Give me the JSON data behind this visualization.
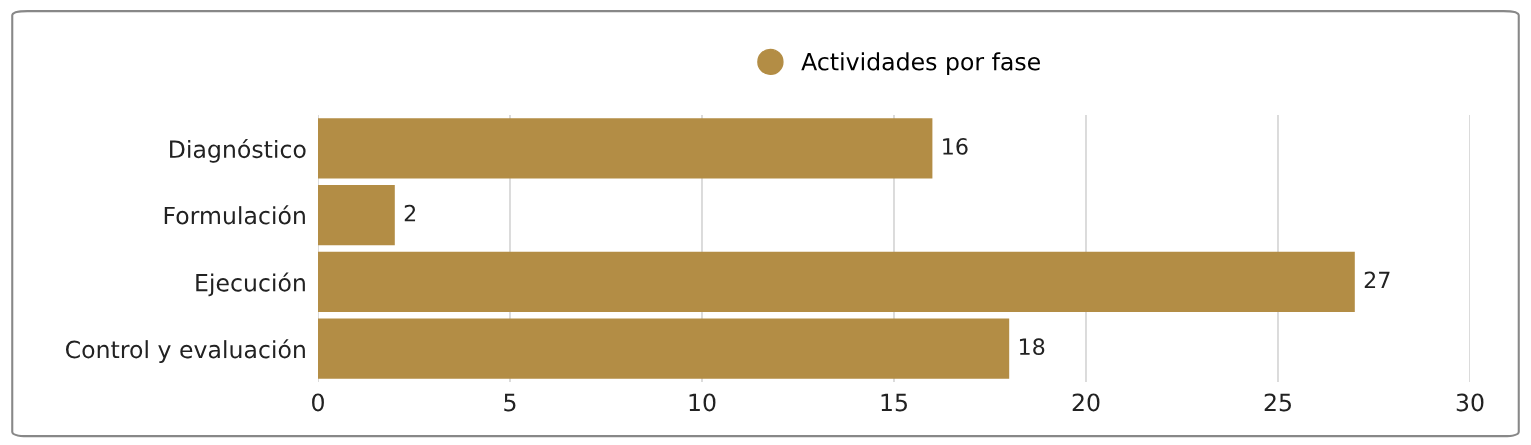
{
  "chart_data": {
    "type": "bar",
    "orientation": "horizontal",
    "categories": [
      "Diagnóstico",
      "Formulación",
      "Ejecución",
      "Control y evaluación"
    ],
    "series": [
      {
        "name": "Actividades por fase",
        "color": "#b38d45",
        "values": [
          16,
          2,
          27,
          18
        ]
      }
    ],
    "xlim": [
      0,
      30
    ],
    "xticks": [
      0,
      5,
      10,
      15,
      20,
      25,
      30
    ],
    "grid": "x",
    "legend": "top",
    "data_labels": true
  }
}
